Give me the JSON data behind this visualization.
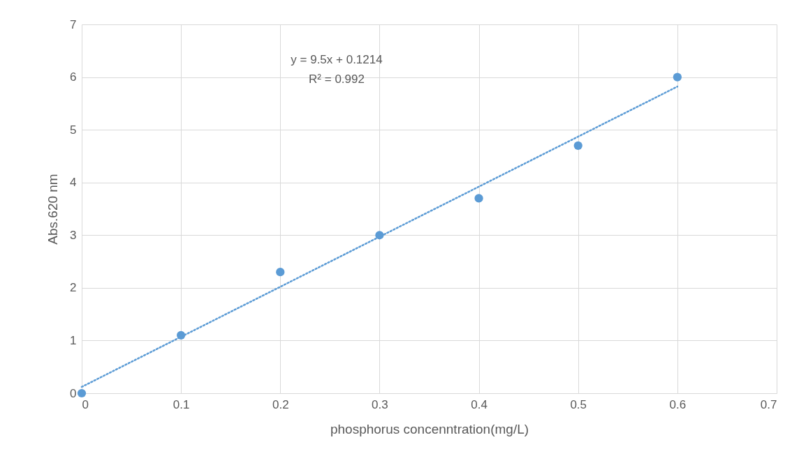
{
  "chart_data": {
    "type": "scatter",
    "xlabel": "phosphorus concenntration(mg/L)",
    "ylabel": "Abs.620 nm",
    "x": [
      0,
      0.1,
      0.2,
      0.3,
      0.4,
      0.5,
      0.6
    ],
    "series": [
      {
        "color": "#5b9bd5",
        "values": [
          0,
          1.1,
          2.3,
          3.0,
          3.7,
          4.7,
          6.0
        ],
        "marker": "circle"
      },
      {
        "type": "line",
        "color": "#5b9bd5",
        "x": [
          0,
          0.6
        ],
        "values": [
          0.12,
          5.82
        ],
        "line_style": "dotted"
      }
    ],
    "annotations": [
      "y = 9.5x + 0.1214",
      "R² = 0.992"
    ],
    "xlim": [
      0,
      0.7
    ],
    "xticks": [
      0,
      0.1,
      0.2,
      0.3,
      0.4,
      0.5,
      0.6,
      0.7
    ],
    "ylim": [
      0,
      7
    ],
    "yticks": [
      0,
      1,
      2,
      3,
      4,
      5,
      6,
      7
    ],
    "grid": true
  }
}
